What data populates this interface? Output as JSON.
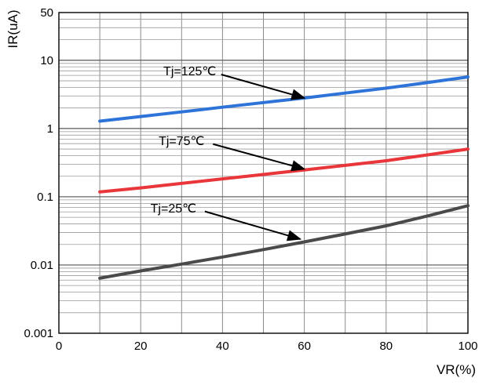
{
  "chart_data": {
    "type": "line",
    "xlabel": "VR(%)",
    "ylabel": "IR(uA)",
    "xlim": [
      0,
      100
    ],
    "ylim": [
      0.001,
      50
    ],
    "y_scale": "log",
    "grid": true,
    "x_ticks": [
      "0",
      "20",
      "40",
      "60",
      "80",
      "100"
    ],
    "y_ticks": [
      "50",
      "10",
      "1",
      "0.1",
      "0.01",
      "0.001"
    ],
    "series": [
      {
        "name": "Tj=125℃",
        "color": "#2e74d8",
        "points": [
          [
            10,
            1.28
          ],
          [
            20,
            1.5
          ],
          [
            30,
            1.75
          ],
          [
            40,
            2.05
          ],
          [
            50,
            2.4
          ],
          [
            60,
            2.8
          ],
          [
            70,
            3.3
          ],
          [
            80,
            3.9
          ],
          [
            90,
            4.7
          ],
          [
            100,
            5.7
          ]
        ]
      },
      {
        "name": "Tj=75℃",
        "color": "#e8363b",
        "points": [
          [
            10,
            0.118
          ],
          [
            20,
            0.135
          ],
          [
            30,
            0.157
          ],
          [
            40,
            0.183
          ],
          [
            50,
            0.212
          ],
          [
            60,
            0.247
          ],
          [
            70,
            0.288
          ],
          [
            80,
            0.337
          ],
          [
            90,
            0.41
          ],
          [
            100,
            0.5
          ]
        ]
      },
      {
        "name": "Tj=25℃",
        "color": "#4a4a4a",
        "points": [
          [
            10,
            0.0064
          ],
          [
            20,
            0.0082
          ],
          [
            30,
            0.0103
          ],
          [
            40,
            0.0131
          ],
          [
            50,
            0.0168
          ],
          [
            60,
            0.0218
          ],
          [
            70,
            0.0285
          ],
          [
            80,
            0.0375
          ],
          [
            90,
            0.052
          ],
          [
            100,
            0.074
          ]
        ]
      }
    ],
    "annotations": [
      {
        "text": "Tj=125℃",
        "label_x": 32,
        "label_y": 6.7,
        "arrow_to_x": 60,
        "arrow_to_y": 2.8
      },
      {
        "text": "Tj=75℃",
        "label_x": 30,
        "label_y": 0.64,
        "arrow_to_x": 60,
        "arrow_to_y": 0.255
      },
      {
        "text": "Tj=25℃",
        "label_x": 28,
        "label_y": 0.066,
        "arrow_to_x": 59,
        "arrow_to_y": 0.024
      }
    ]
  }
}
